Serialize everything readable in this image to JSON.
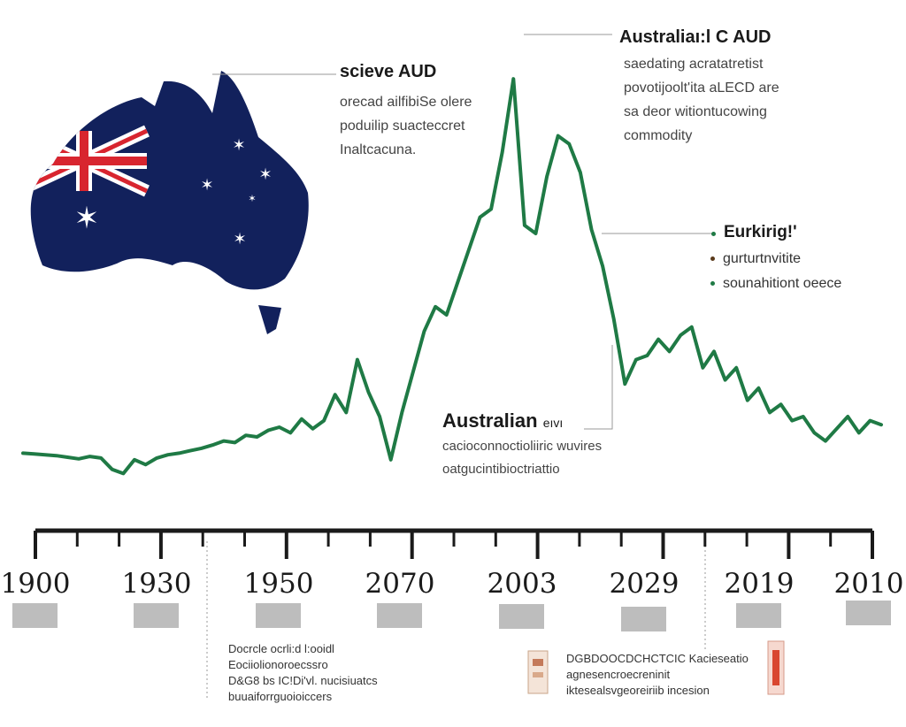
{
  "chart_data": {
    "type": "line",
    "title": "",
    "xlabel": "",
    "ylabel": "",
    "colors": {
      "line": "#1f7a45",
      "flag_blue": "#12215c",
      "flag_red": "#d8252f",
      "tick_box": "#bdbdbd"
    },
    "tick_labels": [
      "1900",
      "1930",
      "1950",
      "2070",
      "2003",
      "2029",
      "2019",
      "2010"
    ],
    "series": [
      {
        "values": [
          0.8,
          0.79,
          0.78,
          0.77,
          0.75,
          0.73,
          0.76,
          0.74,
          0.6,
          0.55,
          0.72,
          0.66,
          0.74,
          0.78,
          0.8,
          0.83,
          0.86,
          0.9,
          0.95,
          0.93,
          1.02,
          1.0,
          1.08,
          1.12,
          1.05,
          1.22,
          1.1,
          1.2,
          1.52,
          1.3,
          1.95,
          1.55,
          1.25,
          0.72,
          1.3,
          1.8,
          2.3,
          2.6,
          2.5,
          2.9,
          3.3,
          3.7,
          3.8,
          4.5,
          5.4,
          3.6,
          3.5,
          4.2,
          4.7,
          4.6,
          4.25,
          3.55,
          3.1,
          2.45,
          1.65,
          1.95,
          2.0,
          2.2,
          2.05,
          2.25,
          2.35,
          1.85,
          2.05,
          1.7,
          1.85,
          1.45,
          1.6,
          1.3,
          1.4,
          1.2,
          1.25,
          1.05,
          0.95,
          1.1,
          1.25,
          1.05,
          1.2,
          1.15
        ]
      }
    ]
  },
  "annotations": {
    "top_left": {
      "title": "scieve AUD",
      "lines": [
        "orecad ailfibiSe olere",
        "poduilip suacteccret",
        "Inaltcacuna."
      ]
    },
    "top_right": {
      "title": "Australiaı:l C AUD",
      "lines": [
        "saedating acratatretist",
        "povotijoolt'ita aLECD are",
        "sa deor witiontucowing",
        "commodity"
      ]
    },
    "legend": {
      "title": "Eurkirig!'",
      "items": [
        "gurturtnvitite",
        "sounahitiont oeece"
      ]
    },
    "middle": {
      "title": "Australian",
      "title_suffix": "eıvı",
      "lines": [
        "cacioconnoctioliiric wuvires",
        "oatgucintibioctriattio"
      ]
    },
    "bottom_left": {
      "lines": [
        "Docrcle ocrli:d l:ooidl",
        "Eociiolionoroecssro",
        "D&G8 bs IC!Di'vl. nucisiuatcs",
        "buuaiforrguoioiccers"
      ]
    },
    "bottom_right": {
      "lines": [
        "DGBDOOCDCHCTCIC Kacieseatio",
        "agnesencroecreninit",
        "iktesealsvgeoreiriib incesion"
      ]
    }
  }
}
